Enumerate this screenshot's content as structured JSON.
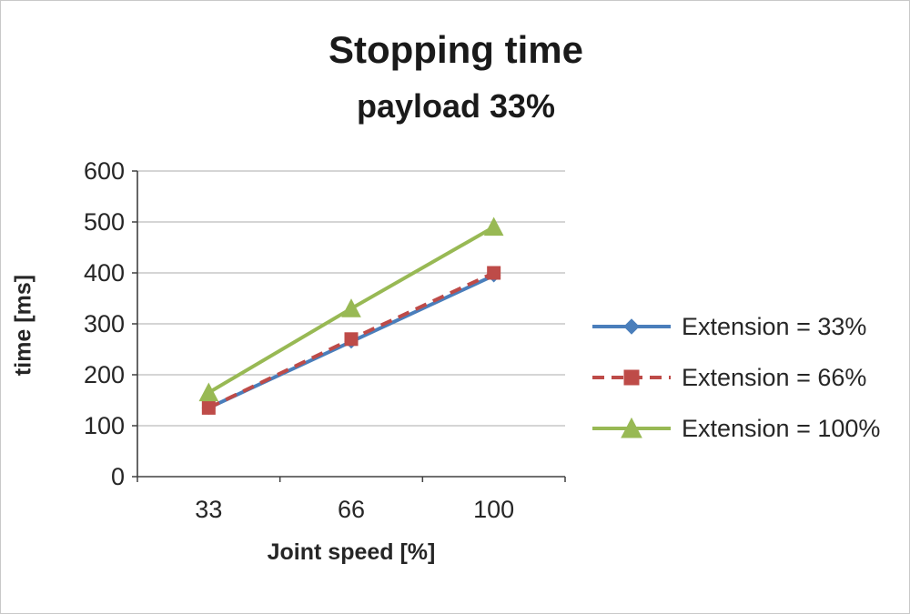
{
  "chart_data": {
    "type": "line",
    "title": "Stopping time",
    "subtitle": "payload 33%",
    "xlabel": "Joint speed [%]",
    "ylabel": "time [ms]",
    "categories": [
      "33",
      "66",
      "100"
    ],
    "series": [
      {
        "name": "Extension = 33%",
        "values": [
          135,
          265,
          395
        ],
        "color": "#4a7ebb",
        "marker": "diamond",
        "dash": "solid"
      },
      {
        "name": "Extension = 66%",
        "values": [
          135,
          270,
          400
        ],
        "color": "#be4b48",
        "marker": "square",
        "dash": "dashed"
      },
      {
        "name": "Extension = 100%",
        "values": [
          165,
          330,
          490
        ],
        "color": "#98b954",
        "marker": "triangle",
        "dash": "solid"
      }
    ],
    "ylim": [
      0,
      600
    ],
    "ytick_step": 100,
    "yticks": [
      "600",
      "500",
      "400",
      "300",
      "200",
      "100",
      "0"
    ],
    "xticks": [
      "33",
      "66",
      "100"
    ],
    "grid": true,
    "legend_position": "right",
    "axis_color": "#404040",
    "grid_color": "#bcbcbc",
    "tick_label_color": "#262626"
  }
}
